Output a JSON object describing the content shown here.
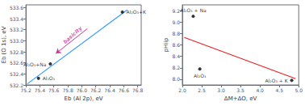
{
  "chart_data": [
    {
      "type": "scatter",
      "xlabel": "Eb (Al 2p), eV",
      "ylabel": "Eb (O 1s), eV",
      "grid": false,
      "xlim": [
        75.2,
        76.85
      ],
      "ylim": [
        532.2,
        533.65
      ],
      "xticks": [
        75.2,
        75.4,
        75.6,
        75.8,
        {
          "value": 76.0,
          "label": "76.0"
        },
        76.2,
        76.4,
        76.6,
        76.8
      ],
      "yticks": [
        532.2,
        532.4,
        532.6,
        532.8,
        {
          "value": 533.0,
          "label": "533.0"
        },
        533.2,
        533.4,
        533.6
      ],
      "series": [
        {
          "type": "line",
          "color": "#3399ff",
          "x": [
            75.22,
            76.65
          ],
          "values": [
            532.22,
            533.56
          ]
        },
        {
          "type": "scatter",
          "color": "#000000",
          "x": [
            75.38,
            75.55,
            76.58
          ],
          "values": [
            532.32,
            532.58,
            533.52
          ],
          "labels": [
            "Al₂O₃",
            "Al₂O₃+Na",
            "Al₂O₃+K"
          ]
        }
      ],
      "annotations": [
        {
          "text": "basicity",
          "x": 75.87,
          "y": 533.1,
          "color": "#cc3399",
          "arrow_from": [
            76.08,
            533.22
          ],
          "arrow_to": [
            75.63,
            532.77
          ]
        }
      ]
    },
    {
      "type": "scatter",
      "xlabel": "ΔM+ΔO, eV",
      "ylabel": "pHiip",
      "grid": false,
      "xlim": [
        2.0,
        5.0
      ],
      "ylim": [
        7.9,
        9.3
      ],
      "xticks": [
        {
          "value": 2.0,
          "label": "2.0"
        },
        2.5,
        {
          "value": 3.0,
          "label": "3.0"
        },
        3.5,
        {
          "value": 4.0,
          "label": "4.0"
        },
        4.5,
        {
          "value": 5.0,
          "label": "5.0"
        }
      ],
      "yticks": [
        {
          "value": 8.0,
          "label": "8.0"
        },
        8.2,
        8.4,
        8.6,
        8.8,
        {
          "value": 9.0,
          "label": "9.0"
        },
        9.2
      ],
      "series": [
        {
          "type": "line",
          "color": "#ee2222",
          "x": [
            2.05,
            4.92
          ],
          "values": [
            8.73,
            8.01
          ]
        },
        {
          "type": "scatter",
          "color": "#000000",
          "x": [
            2.28,
            2.45,
            4.82
          ],
          "values": [
            9.1,
            8.18,
            7.98
          ],
          "labels": [
            "Al₂O₃ + Na",
            "Al₂O₃",
            "Al₂O₃ + K"
          ]
        }
      ]
    }
  ]
}
